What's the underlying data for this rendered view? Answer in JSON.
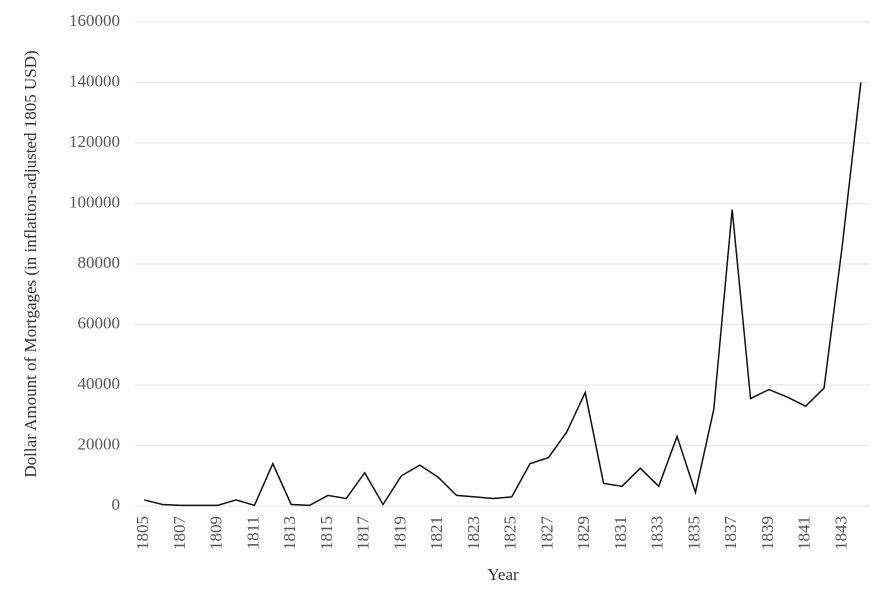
{
  "chart_data": {
    "type": "line",
    "x_label": "Year",
    "y_label": "Dollar Amount of Mortgages (in inflation-adjusted 1805 USD)",
    "x": [
      1805,
      1806,
      1807,
      1808,
      1809,
      1810,
      1811,
      1812,
      1813,
      1814,
      1815,
      1816,
      1817,
      1818,
      1819,
      1820,
      1821,
      1822,
      1823,
      1824,
      1825,
      1826,
      1827,
      1828,
      1829,
      1830,
      1831,
      1832,
      1833,
      1834,
      1835,
      1836,
      1837,
      1838,
      1839,
      1840,
      1841,
      1842,
      1843,
      1844
    ],
    "values": [
      2000,
      500,
      200,
      200,
      200,
      2000,
      200,
      14000,
      500,
      200,
      3500,
      2500,
      11000,
      500,
      10000,
      13500,
      9500,
      3500,
      3000,
      2500,
      3000,
      14000,
      16000,
      24500,
      37500,
      7500,
      6500,
      12500,
      6500,
      23000,
      4500,
      32000,
      98000,
      35500,
      38500,
      36000,
      33000,
      39000,
      86500,
      140000
    ],
    "color": "#111111",
    "xlim": [
      1804.5,
      1844.5
    ],
    "xticks": [
      1805,
      1807,
      1809,
      1811,
      1813,
      1815,
      1817,
      1819,
      1821,
      1823,
      1825,
      1827,
      1829,
      1831,
      1833,
      1835,
      1837,
      1839,
      1841,
      1843
    ],
    "ylim": [
      0,
      160000
    ],
    "yticks": [
      0,
      20000,
      40000,
      60000,
      80000,
      100000,
      120000,
      140000,
      160000
    ],
    "grid": true
  }
}
